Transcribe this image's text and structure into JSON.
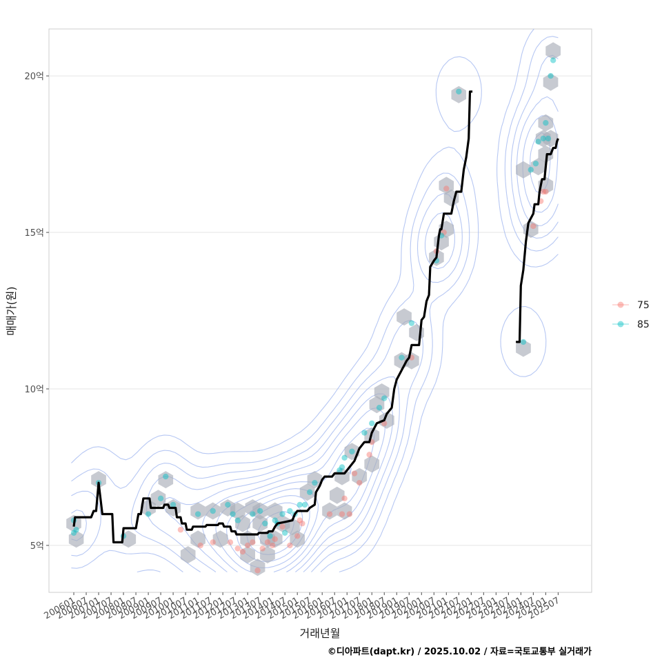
{
  "chart_data": {
    "type": "scatter",
    "xlabel": "거래년월",
    "ylabel": "매매가(원)",
    "y_unit": "억",
    "ylim": [
      3.5,
      21.5
    ],
    "xlim": [
      2005.0,
      2026.85
    ],
    "y_ticks": [
      {
        "value": 5,
        "label": "5억"
      },
      {
        "value": 10,
        "label": "10억"
      },
      {
        "value": 15,
        "label": "15억"
      },
      {
        "value": 20,
        "label": "20억"
      }
    ],
    "x_ticks": [
      {
        "value": 2006.0,
        "label": "200601"
      },
      {
        "value": 2006.5,
        "label": "200607"
      },
      {
        "value": 2007.0,
        "label": "200701"
      },
      {
        "value": 2007.5,
        "label": "200707"
      },
      {
        "value": 2008.0,
        "label": "200801"
      },
      {
        "value": 2008.5,
        "label": "200807"
      },
      {
        "value": 2009.0,
        "label": "200901"
      },
      {
        "value": 2009.5,
        "label": "200907"
      },
      {
        "value": 2010.0,
        "label": "201001"
      },
      {
        "value": 2010.5,
        "label": "201007"
      },
      {
        "value": 2011.0,
        "label": "201101"
      },
      {
        "value": 2011.5,
        "label": "201107"
      },
      {
        "value": 2012.0,
        "label": "201201"
      },
      {
        "value": 2012.5,
        "label": "201207"
      },
      {
        "value": 2013.0,
        "label": "201301"
      },
      {
        "value": 2013.5,
        "label": "201307"
      },
      {
        "value": 2014.0,
        "label": "201401"
      },
      {
        "value": 2014.5,
        "label": "201407"
      },
      {
        "value": 2015.0,
        "label": "201501"
      },
      {
        "value": 2015.5,
        "label": "201507"
      },
      {
        "value": 2016.0,
        "label": "201601"
      },
      {
        "value": 2016.5,
        "label": "201607"
      },
      {
        "value": 2017.0,
        "label": "201701"
      },
      {
        "value": 2017.5,
        "label": "201707"
      },
      {
        "value": 2018.0,
        "label": "201801"
      },
      {
        "value": 2018.5,
        "label": "201807"
      },
      {
        "value": 2019.0,
        "label": "201901"
      },
      {
        "value": 2019.5,
        "label": "201907"
      },
      {
        "value": 2020.0,
        "label": "202001"
      },
      {
        "value": 2020.5,
        "label": "202007"
      },
      {
        "value": 2021.0,
        "label": "202101"
      },
      {
        "value": 2021.5,
        "label": "202107"
      },
      {
        "value": 2022.0,
        "label": "202201"
      },
      {
        "value": 2022.5,
        "label": "202207"
      },
      {
        "value": 2023.0,
        "label": "202301"
      },
      {
        "value": 2023.5,
        "label": "202307"
      },
      {
        "value": 2024.0,
        "label": "202401"
      },
      {
        "value": 2024.5,
        "label": "202407"
      },
      {
        "value": 2025.0,
        "label": "202501"
      },
      {
        "value": 2025.5,
        "label": "202507"
      }
    ],
    "legend": {
      "position": "right",
      "entries": [
        {
          "name": "75",
          "color": "#F8766D"
        },
        {
          "name": "85",
          "color": "#00BFC4"
        }
      ]
    },
    "series": [
      {
        "name": "75",
        "color": "#F8766D",
        "points": [
          [
            2010.3,
            5.5
          ],
          [
            2011.1,
            5.0
          ],
          [
            2011.6,
            5.1
          ],
          [
            2012.3,
            5.1
          ],
          [
            2012.6,
            4.9
          ],
          [
            2012.8,
            4.8
          ],
          [
            2013.0,
            5.0
          ],
          [
            2013.2,
            5.1
          ],
          [
            2013.4,
            4.2
          ],
          [
            2013.6,
            4.9
          ],
          [
            2013.8,
            5.1
          ],
          [
            2014.0,
            5.0
          ],
          [
            2014.1,
            5.2
          ],
          [
            2014.4,
            5.6
          ],
          [
            2014.7,
            5.0
          ],
          [
            2015.0,
            5.3
          ],
          [
            2015.1,
            5.8
          ],
          [
            2015.2,
            5.7
          ],
          [
            2016.3,
            6.0
          ],
          [
            2016.8,
            6.0
          ],
          [
            2016.9,
            6.5
          ],
          [
            2017.1,
            6.0
          ],
          [
            2017.3,
            7.3
          ],
          [
            2017.5,
            7.0
          ],
          [
            2017.9,
            7.9
          ],
          [
            2018.0,
            8.3
          ],
          [
            2018.5,
            8.9
          ],
          [
            2019.6,
            11.0
          ],
          [
            2020.6,
            14.4
          ],
          [
            2020.9,
            15.0
          ],
          [
            2021.0,
            16.4
          ],
          [
            2024.5,
            15.2
          ],
          [
            2024.8,
            16.0
          ],
          [
            2024.9,
            16.3
          ],
          [
            2025.0,
            16.3
          ]
        ]
      },
      {
        "name": "85",
        "color": "#00BFC4",
        "points": [
          [
            2006.0,
            5.8
          ],
          [
            2006.1,
            5.5
          ],
          [
            2006.0,
            5.4
          ],
          [
            2007.0,
            7.0
          ],
          [
            2008.0,
            5.3
          ],
          [
            2009.0,
            6.0
          ],
          [
            2009.5,
            6.5
          ],
          [
            2009.7,
            7.2
          ],
          [
            2010.0,
            6.3
          ],
          [
            2011.0,
            6.0
          ],
          [
            2011.6,
            6.1
          ],
          [
            2012.2,
            6.3
          ],
          [
            2012.4,
            6.0
          ],
          [
            2012.6,
            5.8
          ],
          [
            2013.2,
            6.0
          ],
          [
            2013.5,
            6.1
          ],
          [
            2013.7,
            5.7
          ],
          [
            2013.9,
            5.3
          ],
          [
            2014.1,
            5.8
          ],
          [
            2014.2,
            5.7
          ],
          [
            2014.4,
            6.0
          ],
          [
            2014.5,
            5.4
          ],
          [
            2014.7,
            6.1
          ],
          [
            2014.9,
            6.0
          ],
          [
            2015.1,
            6.3
          ],
          [
            2015.3,
            6.3
          ],
          [
            2015.5,
            6.7
          ],
          [
            2015.7,
            7.0
          ],
          [
            2016.7,
            7.4
          ],
          [
            2016.8,
            7.5
          ],
          [
            2016.9,
            7.8
          ],
          [
            2017.2,
            8.0
          ],
          [
            2017.7,
            8.6
          ],
          [
            2018.0,
            8.9
          ],
          [
            2018.3,
            9.4
          ],
          [
            2018.5,
            9.7
          ],
          [
            2019.2,
            11.0
          ],
          [
            2019.6,
            12.1
          ],
          [
            2020.6,
            14.1
          ],
          [
            2020.8,
            14.9
          ],
          [
            2021.5,
            19.5
          ],
          [
            2024.1,
            11.5
          ],
          [
            2024.4,
            17.0
          ],
          [
            2024.6,
            17.2
          ],
          [
            2024.7,
            17.9
          ],
          [
            2024.9,
            18.0
          ],
          [
            2025.0,
            18.5
          ],
          [
            2025.1,
            18.0
          ],
          [
            2025.2,
            20.0
          ],
          [
            2025.3,
            20.5
          ]
        ]
      }
    ],
    "hexbins": [
      [
        2006.0,
        5.7
      ],
      [
        2006.1,
        5.2
      ],
      [
        2007.0,
        7.1
      ],
      [
        2008.2,
        5.2
      ],
      [
        2009.0,
        6.2
      ],
      [
        2009.4,
        6.5
      ],
      [
        2009.7,
        7.1
      ],
      [
        2010.0,
        6.2
      ],
      [
        2010.6,
        4.7
      ],
      [
        2011.0,
        6.1
      ],
      [
        2011.0,
        5.2
      ],
      [
        2011.6,
        6.1
      ],
      [
        2011.9,
        5.2
      ],
      [
        2012.2,
        6.2
      ],
      [
        2012.6,
        6.1
      ],
      [
        2012.8,
        5.7
      ],
      [
        2013.0,
        5.2
      ],
      [
        2013.0,
        4.7
      ],
      [
        2013.2,
        6.2
      ],
      [
        2013.5,
        6.1
      ],
      [
        2013.5,
        5.7
      ],
      [
        2013.8,
        5.2
      ],
      [
        2013.8,
        4.7
      ],
      [
        2014.1,
        6.1
      ],
      [
        2014.4,
        5.7
      ],
      [
        2014.1,
        5.2
      ],
      [
        2013.4,
        4.3
      ],
      [
        2014.8,
        5.6
      ],
      [
        2015.0,
        5.2
      ],
      [
        2015.4,
        6.7
      ],
      [
        2015.7,
        7.1
      ],
      [
        2016.3,
        6.1
      ],
      [
        2016.6,
        6.6
      ],
      [
        2016.8,
        7.2
      ],
      [
        2016.9,
        6.1
      ],
      [
        2017.2,
        8.0
      ],
      [
        2017.5,
        7.2
      ],
      [
        2018.0,
        7.6
      ],
      [
        2018.0,
        8.5
      ],
      [
        2018.2,
        9.5
      ],
      [
        2018.4,
        9.9
      ],
      [
        2018.6,
        9.0
      ],
      [
        2019.2,
        10.9
      ],
      [
        2019.3,
        12.3
      ],
      [
        2019.6,
        10.9
      ],
      [
        2019.8,
        11.8
      ],
      [
        2020.6,
        14.2
      ],
      [
        2020.8,
        14.7
      ],
      [
        2021.0,
        15.1
      ],
      [
        2021.0,
        16.5
      ],
      [
        2021.2,
        16.1
      ],
      [
        2021.5,
        19.4
      ],
      [
        2024.1,
        11.3
      ],
      [
        2024.1,
        17.0
      ],
      [
        2024.4,
        15.1
      ],
      [
        2024.7,
        17.1
      ],
      [
        2024.9,
        18.0
      ],
      [
        2025.0,
        18.5
      ],
      [
        2025.0,
        16.5
      ],
      [
        2025.0,
        17.5
      ],
      [
        2025.2,
        18.0
      ],
      [
        2025.2,
        19.8
      ],
      [
        2025.3,
        20.8
      ]
    ],
    "median_line": [
      [
        [
          2006.0,
          5.6
        ],
        [
          2006.05,
          5.9
        ],
        [
          2006.7,
          5.9
        ],
        [
          2006.8,
          6.1
        ],
        [
          2006.9,
          6.1
        ],
        [
          2007.0,
          7.0
        ],
        [
          2007.15,
          6.0
        ],
        [
          2007.55,
          6.0
        ],
        [
          2007.6,
          5.1
        ],
        [
          2007.95,
          5.1
        ],
        [
          2008.0,
          5.55
        ],
        [
          2008.5,
          5.55
        ],
        [
          2008.6,
          6.0
        ],
        [
          2008.7,
          6.0
        ],
        [
          2008.8,
          6.5
        ],
        [
          2009.05,
          6.5
        ],
        [
          2009.1,
          6.2
        ],
        [
          2009.6,
          6.2
        ],
        [
          2009.65,
          6.3
        ],
        [
          2009.8,
          6.3
        ],
        [
          2009.85,
          6.2
        ],
        [
          2010.1,
          6.2
        ],
        [
          2010.15,
          5.9
        ],
        [
          2010.3,
          5.9
        ],
        [
          2010.35,
          5.7
        ],
        [
          2010.5,
          5.7
        ],
        [
          2010.55,
          5.5
        ],
        [
          2010.75,
          5.5
        ],
        [
          2010.8,
          5.6
        ],
        [
          2011.3,
          5.6
        ],
        [
          2011.35,
          5.65
        ],
        [
          2011.8,
          5.65
        ],
        [
          2011.85,
          5.7
        ],
        [
          2012.0,
          5.7
        ],
        [
          2012.05,
          5.6
        ],
        [
          2012.3,
          5.6
        ],
        [
          2012.35,
          5.45
        ],
        [
          2012.5,
          5.45
        ],
        [
          2012.55,
          5.35
        ],
        [
          2013.4,
          5.35
        ],
        [
          2013.45,
          5.4
        ],
        [
          2013.8,
          5.4
        ],
        [
          2013.85,
          5.45
        ],
        [
          2014.0,
          5.45
        ],
        [
          2014.1,
          5.6
        ],
        [
          2014.2,
          5.7
        ],
        [
          2014.5,
          5.75
        ],
        [
          2014.8,
          5.8
        ],
        [
          2014.9,
          6.0
        ],
        [
          2015.0,
          6.1
        ],
        [
          2015.4,
          6.1
        ],
        [
          2015.5,
          6.2
        ],
        [
          2015.7,
          6.3
        ],
        [
          2015.75,
          6.7
        ],
        [
          2015.9,
          6.9
        ],
        [
          2016.0,
          7.1
        ],
        [
          2016.1,
          7.2
        ],
        [
          2016.4,
          7.2
        ],
        [
          2016.5,
          7.3
        ],
        [
          2016.9,
          7.3
        ],
        [
          2017.0,
          7.4
        ],
        [
          2017.3,
          7.7
        ],
        [
          2017.5,
          8.1
        ],
        [
          2017.7,
          8.3
        ],
        [
          2017.9,
          8.3
        ],
        [
          2018.0,
          8.6
        ],
        [
          2018.2,
          8.9
        ],
        [
          2018.5,
          9.0
        ],
        [
          2018.6,
          9.2
        ],
        [
          2018.8,
          9.4
        ],
        [
          2018.9,
          10.0
        ],
        [
          2019.0,
          10.3
        ],
        [
          2019.2,
          10.6
        ],
        [
          2019.4,
          10.9
        ],
        [
          2019.5,
          11.0
        ],
        [
          2019.6,
          11.4
        ],
        [
          2019.9,
          11.4
        ],
        [
          2020.0,
          12.2
        ],
        [
          2020.1,
          12.3
        ],
        [
          2020.2,
          12.8
        ],
        [
          2020.3,
          13.0
        ],
        [
          2020.35,
          13.9
        ],
        [
          2020.5,
          14.1
        ],
        [
          2020.6,
          14.2
        ],
        [
          2020.7,
          14.9
        ],
        [
          2020.75,
          15.1
        ],
        [
          2020.8,
          15.1
        ],
        [
          2020.9,
          15.6
        ],
        [
          2021.2,
          15.6
        ],
        [
          2021.3,
          16.0
        ],
        [
          2021.4,
          16.3
        ],
        [
          2021.6,
          16.3
        ],
        [
          2021.7,
          17.0
        ],
        [
          2021.8,
          17.4
        ],
        [
          2021.9,
          18.0
        ],
        [
          2021.95,
          19.5
        ],
        [
          2022.05,
          19.5
        ]
      ],
      [
        [
          2023.8,
          11.5
        ],
        [
          2023.95,
          11.5
        ],
        [
          2024.0,
          13.3
        ],
        [
          2024.1,
          13.8
        ],
        [
          2024.2,
          14.7
        ],
        [
          2024.3,
          15.3
        ],
        [
          2024.5,
          15.6
        ],
        [
          2024.55,
          15.9
        ],
        [
          2024.7,
          15.9
        ],
        [
          2024.75,
          16.3
        ],
        [
          2024.85,
          16.7
        ],
        [
          2024.95,
          16.7
        ],
        [
          2025.0,
          17.1
        ],
        [
          2025.05,
          17.5
        ],
        [
          2025.2,
          17.5
        ],
        [
          2025.3,
          17.7
        ],
        [
          2025.4,
          17.7
        ],
        [
          2025.45,
          17.9
        ],
        [
          2025.5,
          18.0
        ]
      ]
    ]
  },
  "credit": "©디아파트(dapt.kr) / 2025.10.02 / 자료=국토교통부 실거래가"
}
